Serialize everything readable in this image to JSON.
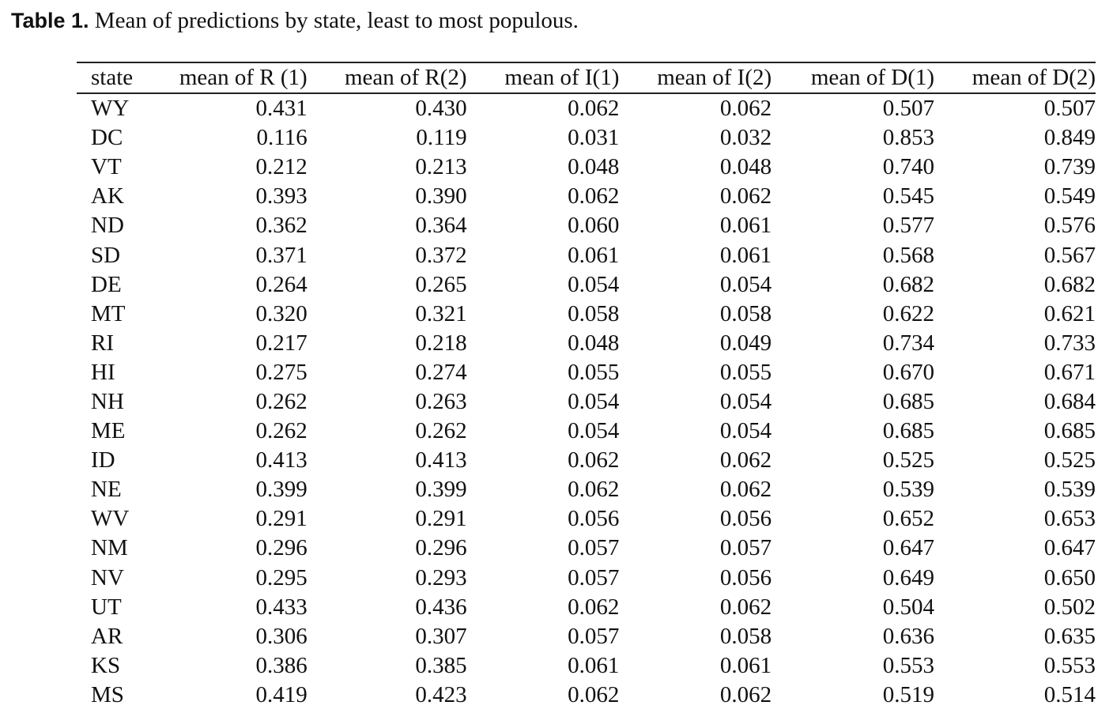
{
  "caption": {
    "label": "Table 1.",
    "text": "Mean of predictions by state, least to most populous."
  },
  "table": {
    "headers": [
      "state",
      "mean of R (1)",
      "mean of R(2)",
      "mean of I(1)",
      "mean of I(2)",
      "mean of D(1)",
      "mean of D(2)"
    ],
    "rows": [
      [
        "WY",
        "0.431",
        "0.430",
        "0.062",
        "0.062",
        "0.507",
        "0.507"
      ],
      [
        "DC",
        "0.116",
        "0.119",
        "0.031",
        "0.032",
        "0.853",
        "0.849"
      ],
      [
        "VT",
        "0.212",
        "0.213",
        "0.048",
        "0.048",
        "0.740",
        "0.739"
      ],
      [
        "AK",
        "0.393",
        "0.390",
        "0.062",
        "0.062",
        "0.545",
        "0.549"
      ],
      [
        "ND",
        "0.362",
        "0.364",
        "0.060",
        "0.061",
        "0.577",
        "0.576"
      ],
      [
        "SD",
        "0.371",
        "0.372",
        "0.061",
        "0.061",
        "0.568",
        "0.567"
      ],
      [
        "DE",
        "0.264",
        "0.265",
        "0.054",
        "0.054",
        "0.682",
        "0.682"
      ],
      [
        "MT",
        "0.320",
        "0.321",
        "0.058",
        "0.058",
        "0.622",
        "0.621"
      ],
      [
        "RI",
        "0.217",
        "0.218",
        "0.048",
        "0.049",
        "0.734",
        "0.733"
      ],
      [
        "HI",
        "0.275",
        "0.274",
        "0.055",
        "0.055",
        "0.670",
        "0.671"
      ],
      [
        "NH",
        "0.262",
        "0.263",
        "0.054",
        "0.054",
        "0.685",
        "0.684"
      ],
      [
        "ME",
        "0.262",
        "0.262",
        "0.054",
        "0.054",
        "0.685",
        "0.685"
      ],
      [
        "ID",
        "0.413",
        "0.413",
        "0.062",
        "0.062",
        "0.525",
        "0.525"
      ],
      [
        "NE",
        "0.399",
        "0.399",
        "0.062",
        "0.062",
        "0.539",
        "0.539"
      ],
      [
        "WV",
        "0.291",
        "0.291",
        "0.056",
        "0.056",
        "0.652",
        "0.653"
      ],
      [
        "NM",
        "0.296",
        "0.296",
        "0.057",
        "0.057",
        "0.647",
        "0.647"
      ],
      [
        "NV",
        "0.295",
        "0.293",
        "0.057",
        "0.056",
        "0.649",
        "0.650"
      ],
      [
        "UT",
        "0.433",
        "0.436",
        "0.062",
        "0.062",
        "0.504",
        "0.502"
      ],
      [
        "AR",
        "0.306",
        "0.307",
        "0.057",
        "0.058",
        "0.636",
        "0.635"
      ],
      [
        "KS",
        "0.386",
        "0.385",
        "0.061",
        "0.061",
        "0.553",
        "0.553"
      ],
      [
        "MS",
        "0.419",
        "0.423",
        "0.062",
        "0.062",
        "0.519",
        "0.514"
      ]
    ]
  }
}
